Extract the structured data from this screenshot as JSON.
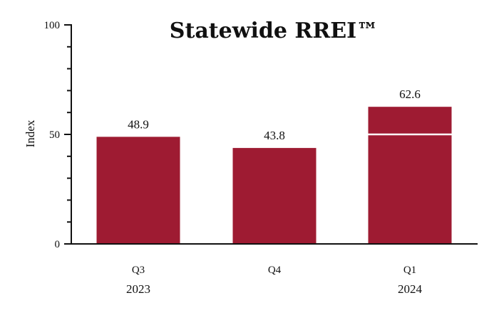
{
  "chart_data": {
    "type": "bar",
    "title": "Statewide RREI™",
    "ylabel": "Index",
    "xlabel": "",
    "ylim": [
      0,
      100
    ],
    "yticks_labeled": [
      0,
      50,
      100
    ],
    "yticks_minor_step": 10,
    "grid": false,
    "categories": [
      "Q3",
      "Q4",
      "Q1"
    ],
    "year_labels": [
      "2023",
      "",
      "2024"
    ],
    "values": [
      48.9,
      43.8,
      62.6
    ],
    "value_labels": [
      "48.9",
      "43.8",
      "62.6"
    ],
    "reference_line": 50,
    "bar_color": "#9e1b32",
    "reference_line_color": "#ffffff"
  }
}
